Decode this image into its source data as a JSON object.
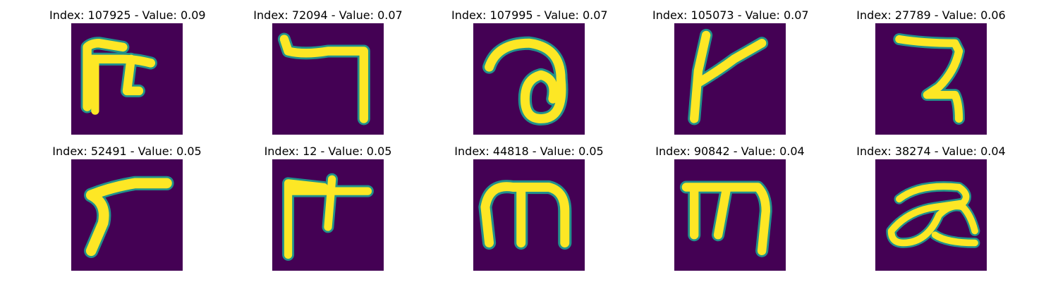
{
  "colors": {
    "background_pixel": "#440154",
    "stroke_pixel": "#fde725",
    "edge_pixel": "#21918c"
  },
  "images": [
    {
      "title": "Index: 107925 - Value: 0.09",
      "index": 107925,
      "value": 0.09,
      "glyph": "g0"
    },
    {
      "title": "Index: 72094 - Value: 0.07",
      "index": 72094,
      "value": 0.07,
      "glyph": "g1"
    },
    {
      "title": "Index: 107995 - Value: 0.07",
      "index": 107995,
      "value": 0.07,
      "glyph": "g2"
    },
    {
      "title": "Index: 105073 - Value: 0.07",
      "index": 105073,
      "value": 0.07,
      "glyph": "g3"
    },
    {
      "title": "Index: 27789 - Value: 0.06",
      "index": 27789,
      "value": 0.06,
      "glyph": "g4"
    },
    {
      "title": "Index: 52491 - Value: 0.05",
      "index": 52491,
      "value": 0.05,
      "glyph": "g5"
    },
    {
      "title": "Index: 12 - Value: 0.05",
      "index": 12,
      "value": 0.05,
      "glyph": "g6"
    },
    {
      "title": "Index: 44818 - Value: 0.05",
      "index": 44818,
      "value": 0.05,
      "glyph": "g7"
    },
    {
      "title": "Index: 90842 - Value: 0.04",
      "index": 90842,
      "value": 0.04,
      "glyph": "g8"
    },
    {
      "title": "Index: 38274 - Value: 0.04",
      "index": 38274,
      "value": 0.04,
      "glyph": "g9"
    }
  ]
}
